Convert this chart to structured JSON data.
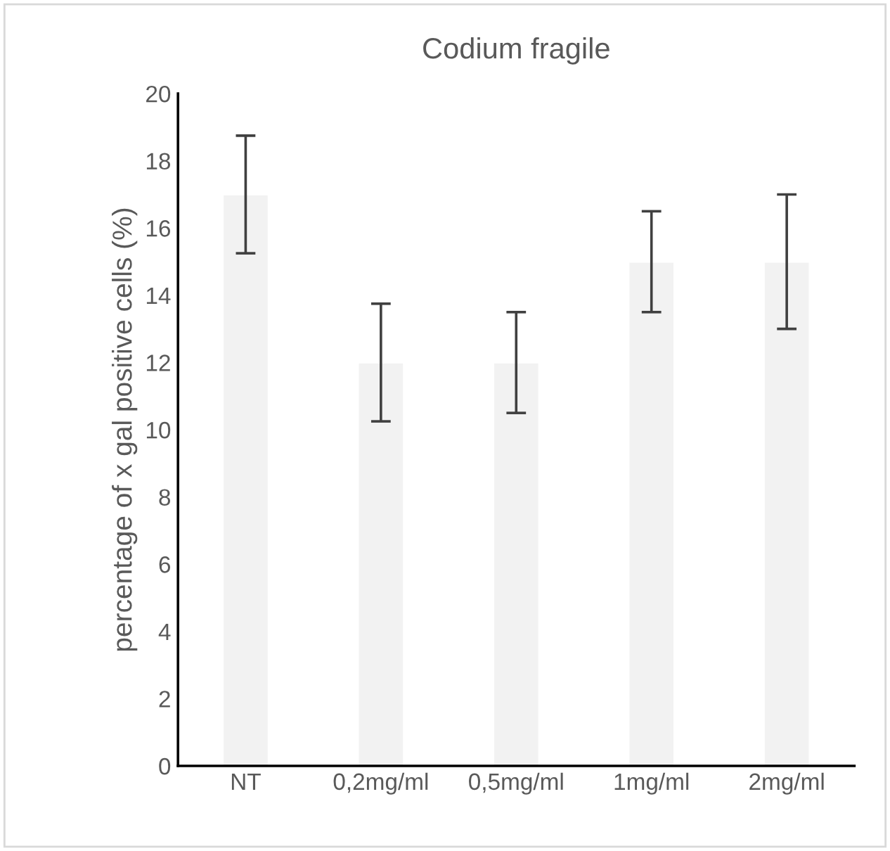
{
  "chart_data": {
    "type": "bar",
    "title": "Codium fragile",
    "ylabel": "percentage of x gal positive cells (%)",
    "categories": [
      "NT",
      "0,2mg/ml",
      "0,5mg/ml",
      "1mg/ml",
      "2mg/ml"
    ],
    "values": [
      17,
      12,
      12,
      15,
      15
    ],
    "errors": [
      1.75,
      1.75,
      1.5,
      1.5,
      2
    ],
    "color": "#f2f2f2",
    "ylim": [
      0,
      20
    ],
    "yticks": [
      0,
      2,
      4,
      6,
      8,
      10,
      12,
      14,
      16,
      18,
      20
    ],
    "grid": false
  }
}
